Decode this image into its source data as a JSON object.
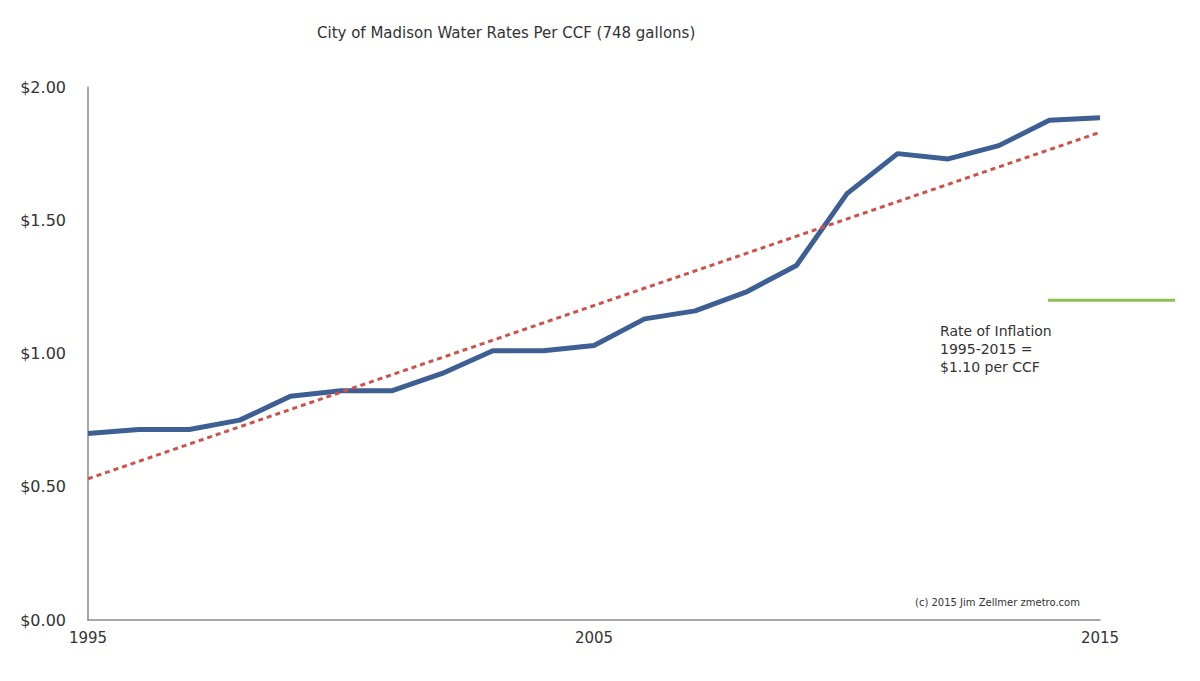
{
  "chart_data": {
    "type": "line",
    "title": "City of Madison Water Rates Per CCF (748 gallons)",
    "x": [
      1995,
      1996,
      1997,
      1998,
      1999,
      2000,
      2001,
      2002,
      2003,
      2004,
      2005,
      2006,
      2007,
      2008,
      2009,
      2010,
      2011,
      2012,
      2013,
      2014,
      2015
    ],
    "series": [
      {
        "color": "#3d5f93",
        "line_style": "solid",
        "values": [
          0.7,
          0.715,
          0.715,
          0.75,
          0.84,
          0.86,
          0.86,
          0.925,
          1.01,
          1.01,
          1.03,
          1.13,
          1.16,
          1.23,
          1.33,
          1.6,
          1.75,
          1.73,
          1.78,
          1.875,
          1.885
        ]
      },
      {
        "color": "#d0504a",
        "line_style": "dashed",
        "x": [
          1995,
          2015
        ],
        "values": [
          0.53,
          1.83
        ]
      }
    ],
    "xlim": [
      1995,
      2015
    ],
    "xticks": [
      1995,
      2005,
      2015
    ],
    "ylim": [
      0,
      2
    ],
    "yticks": [
      {
        "value": 0,
        "label": "$0.00"
      },
      {
        "value": 0.5,
        "label": "$0.50"
      },
      {
        "value": 1,
        "label": "$1.00"
      },
      {
        "value": 1.5,
        "label": "$1.50"
      },
      {
        "value": 2,
        "label": "$2.00"
      }
    ],
    "grid": false,
    "annotation": [
      "Rate of Inflation",
      "1995-2015 =",
      "$1.10 per CCF"
    ],
    "annotation_line": {
      "y": 1.2,
      "color": "#8cc152"
    },
    "copyright": "(c) 2015 Jim Zellmer",
    "link": "zmetro.com"
  }
}
